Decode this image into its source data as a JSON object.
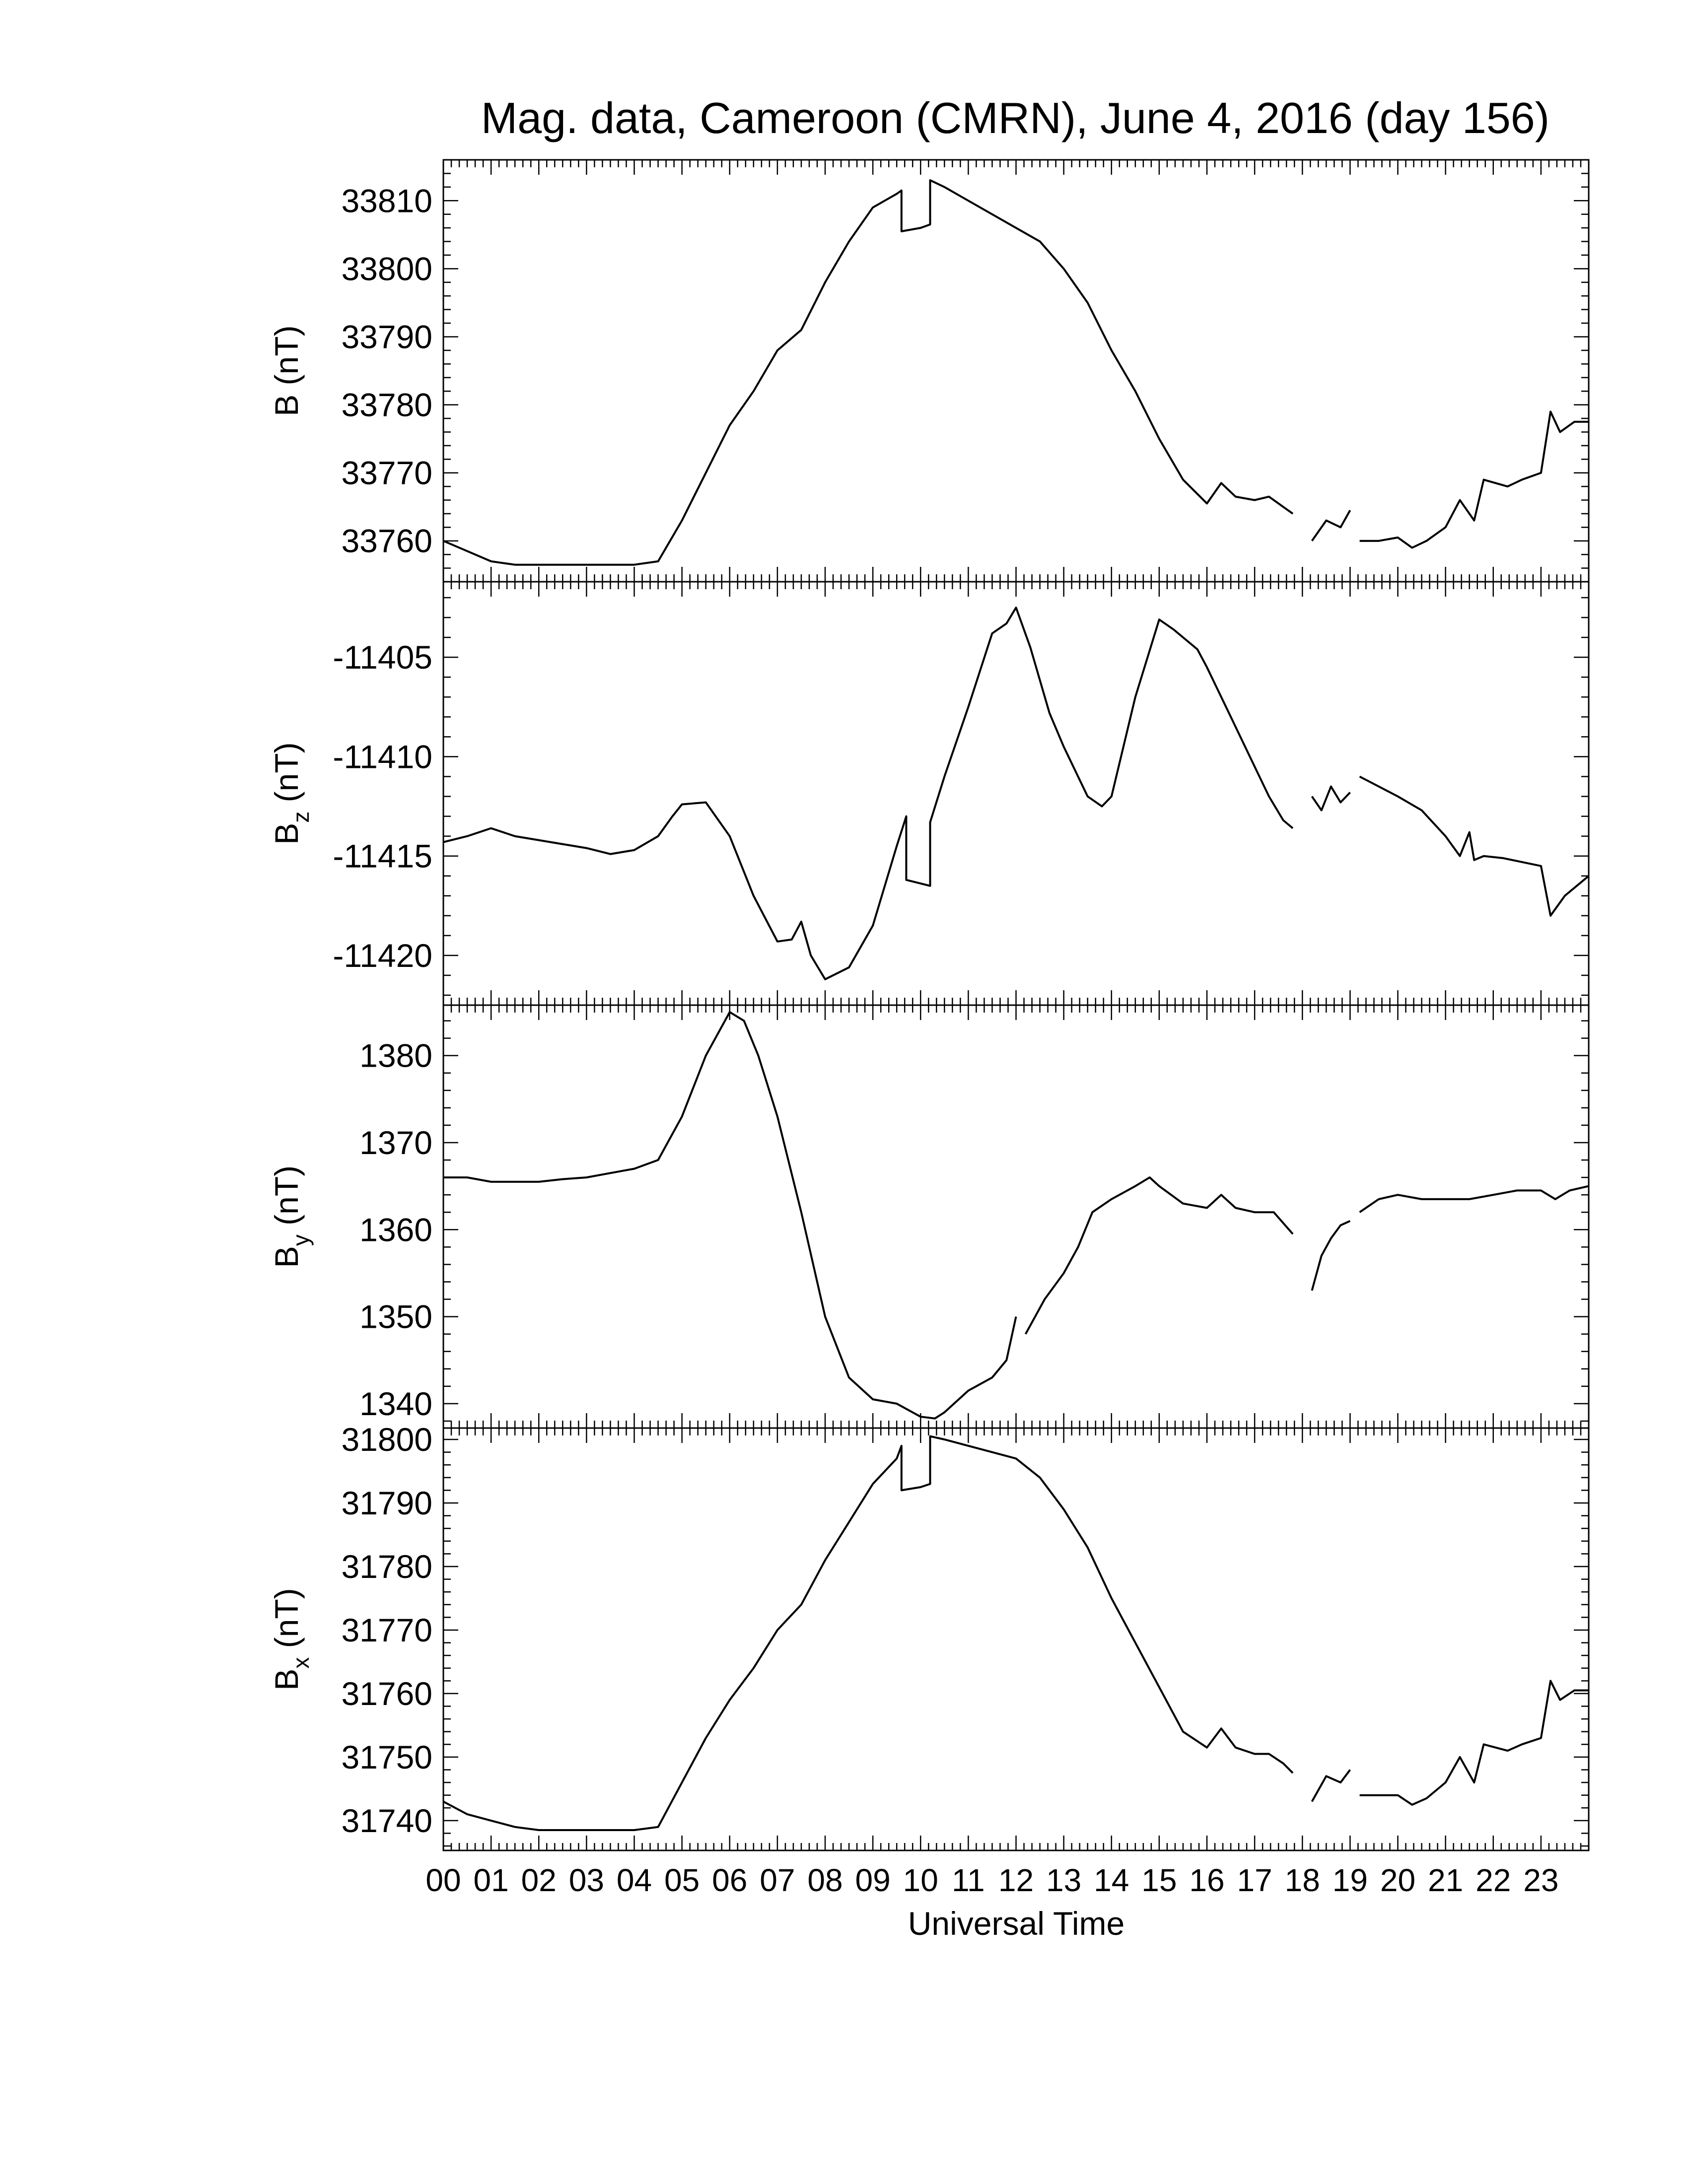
{
  "title": "Mag. data, Cameroon (CMRN), June 4, 2016 (day 156)",
  "xlabel": "Universal Time",
  "line_color": "#000000",
  "xticks": [
    "00",
    "01",
    "02",
    "03",
    "04",
    "05",
    "06",
    "07",
    "08",
    "09",
    "10",
    "11",
    "12",
    "13",
    "14",
    "15",
    "16",
    "17",
    "18",
    "19",
    "20",
    "21",
    "22",
    "23"
  ],
  "chart_data": [
    {
      "type": "line",
      "ylabel": "B (nT)",
      "ylabel_main": "B",
      "ylabel_sub": "",
      "ylim": [
        33754,
        33816
      ],
      "yticks": [
        33760,
        33770,
        33780,
        33790,
        33800,
        33810
      ],
      "xlim": [
        0,
        24
      ],
      "segments": [
        [
          [
            0,
            33760
          ],
          [
            0.5,
            33758.5
          ],
          [
            1,
            33757
          ],
          [
            1.5,
            33756.5
          ],
          [
            2,
            33756.5
          ],
          [
            2.5,
            33756.5
          ],
          [
            3,
            33756.5
          ],
          [
            3.5,
            33756.5
          ],
          [
            4,
            33756.5
          ],
          [
            4.5,
            33757
          ],
          [
            5,
            33763
          ],
          [
            5.5,
            33770
          ],
          [
            6,
            33777
          ],
          [
            6.5,
            33782
          ],
          [
            7,
            33788
          ],
          [
            7.5,
            33791
          ],
          [
            8,
            33798
          ],
          [
            8.5,
            33804
          ],
          [
            9,
            33809
          ],
          [
            9.5,
            33811
          ],
          [
            9.6,
            33811.5
          ],
          [
            9.6,
            33805.5
          ],
          [
            10,
            33806
          ],
          [
            10.2,
            33806.5
          ],
          [
            10.2,
            33813
          ],
          [
            10.5,
            33812
          ],
          [
            11,
            33810
          ],
          [
            11.5,
            33808
          ],
          [
            12,
            33806
          ],
          [
            12.5,
            33804
          ],
          [
            13,
            33800
          ],
          [
            13.5,
            33795
          ],
          [
            14,
            33788
          ],
          [
            14.5,
            33782
          ],
          [
            15,
            33775
          ],
          [
            15.5,
            33769
          ],
          [
            16,
            33765.5
          ],
          [
            16.3,
            33768.5
          ],
          [
            16.6,
            33766.5
          ],
          [
            17,
            33766
          ],
          [
            17.3,
            33766.5
          ],
          [
            17.6,
            33765
          ],
          [
            17.8,
            33764
          ]
        ],
        [
          [
            18.2,
            33760
          ],
          [
            18.5,
            33763
          ],
          [
            18.8,
            33762
          ],
          [
            19,
            33764.5
          ]
        ],
        [
          [
            19.2,
            33760
          ],
          [
            19.6,
            33760
          ],
          [
            20,
            33760.5
          ],
          [
            20.3,
            33759
          ],
          [
            20.6,
            33760
          ],
          [
            21,
            33762
          ],
          [
            21.3,
            33766
          ],
          [
            21.6,
            33763
          ],
          [
            21.8,
            33769
          ],
          [
            22.3,
            33768
          ],
          [
            22.6,
            33769
          ],
          [
            23,
            33770
          ],
          [
            23.2,
            33779
          ],
          [
            23.4,
            33776
          ],
          [
            23.7,
            33777.5
          ],
          [
            24,
            33777.5
          ]
        ]
      ]
    },
    {
      "type": "line",
      "ylabel": "Bz (nT)",
      "ylabel_main": "B",
      "ylabel_sub": "z",
      "ylim": [
        -11422.5,
        -11401.2
      ],
      "yticks": [
        -11420,
        -11415,
        -11410,
        -11405
      ],
      "xlim": [
        0,
        24
      ],
      "segments": [
        [
          [
            0,
            -11414.3
          ],
          [
            0.5,
            -11414
          ],
          [
            1,
            -11413.6
          ],
          [
            1.5,
            -11414
          ],
          [
            2,
            -11414.2
          ],
          [
            2.5,
            -11414.4
          ],
          [
            3,
            -11414.6
          ],
          [
            3.5,
            -11414.9
          ],
          [
            4,
            -11414.7
          ],
          [
            4.5,
            -11414
          ],
          [
            4.8,
            -11413
          ],
          [
            5,
            -11412.4
          ],
          [
            5.5,
            -11412.3
          ],
          [
            6,
            -11414
          ],
          [
            6.5,
            -11417
          ],
          [
            7,
            -11419.3
          ],
          [
            7.3,
            -11419.2
          ],
          [
            7.5,
            -11418.3
          ],
          [
            7.7,
            -11420
          ],
          [
            8,
            -11421.2
          ],
          [
            8.5,
            -11420.6
          ],
          [
            9,
            -11418.5
          ],
          [
            9.5,
            -11414.5
          ],
          [
            9.7,
            -11413
          ],
          [
            9.7,
            -11416.2
          ],
          [
            10.2,
            -11416.5
          ],
          [
            10.2,
            -11413.3
          ],
          [
            10.5,
            -11411
          ],
          [
            11,
            -11407.5
          ],
          [
            11.5,
            -11403.8
          ],
          [
            11.8,
            -11403.3
          ],
          [
            12,
            -11402.5
          ],
          [
            12.3,
            -11404.5
          ],
          [
            12.7,
            -11407.8
          ],
          [
            13,
            -11409.5
          ],
          [
            13.5,
            -11412
          ],
          [
            13.8,
            -11412.5
          ],
          [
            14,
            -11412
          ],
          [
            14.5,
            -11407
          ],
          [
            15,
            -11403.1
          ],
          [
            15.3,
            -11403.6
          ],
          [
            15.8,
            -11404.6
          ],
          [
            16,
            -11405.5
          ],
          [
            16.5,
            -11408
          ],
          [
            17,
            -11410.5
          ],
          [
            17.3,
            -11412
          ],
          [
            17.6,
            -11413.2
          ],
          [
            17.8,
            -11413.6
          ]
        ],
        [
          [
            18.2,
            -11412
          ],
          [
            18.4,
            -11412.7
          ],
          [
            18.6,
            -11411.5
          ],
          [
            18.8,
            -11412.3
          ],
          [
            19,
            -11411.8
          ]
        ],
        [
          [
            19.2,
            -11411
          ],
          [
            19.6,
            -11411.5
          ],
          [
            20,
            -11412
          ],
          [
            20.5,
            -11412.7
          ],
          [
            21,
            -11414
          ],
          [
            21.3,
            -11415
          ],
          [
            21.5,
            -11413.8
          ],
          [
            21.6,
            -11415.2
          ],
          [
            21.8,
            -11415
          ],
          [
            22.2,
            -11415.1
          ],
          [
            22.6,
            -11415.3
          ],
          [
            23,
            -11415.5
          ],
          [
            23.2,
            -11418
          ],
          [
            23.5,
            -11417
          ],
          [
            24,
            -11416
          ]
        ]
      ]
    },
    {
      "type": "line",
      "ylabel": "By (nT)",
      "ylabel_main": "B",
      "ylabel_sub": "y",
      "ylim": [
        1337.2,
        1385.8
      ],
      "yticks": [
        1340,
        1350,
        1360,
        1370,
        1380
      ],
      "xlim": [
        0,
        24
      ],
      "segments": [
        [
          [
            0,
            1366
          ],
          [
            0.5,
            1366
          ],
          [
            1,
            1365.5
          ],
          [
            1.5,
            1365.5
          ],
          [
            2,
            1365.5
          ],
          [
            2.5,
            1365.8
          ],
          [
            3,
            1366
          ],
          [
            3.5,
            1366.5
          ],
          [
            4,
            1367
          ],
          [
            4.5,
            1368
          ],
          [
            5,
            1373
          ],
          [
            5.5,
            1380
          ],
          [
            6,
            1385
          ],
          [
            6.3,
            1384
          ],
          [
            6.6,
            1380
          ],
          [
            7,
            1373
          ],
          [
            7.5,
            1362
          ],
          [
            8,
            1350
          ],
          [
            8.5,
            1343
          ],
          [
            9,
            1340.5
          ],
          [
            9.5,
            1340
          ],
          [
            10,
            1338.5
          ],
          [
            10.3,
            1338.3
          ],
          [
            10.5,
            1339
          ],
          [
            11,
            1341.5
          ],
          [
            11.5,
            1343
          ],
          [
            11.8,
            1345
          ],
          [
            12,
            1350
          ]
        ],
        [
          [
            12.2,
            1348
          ],
          [
            12.6,
            1352
          ],
          [
            13,
            1355
          ],
          [
            13.3,
            1358
          ],
          [
            13.6,
            1362
          ],
          [
            14,
            1363.5
          ],
          [
            14.5,
            1365
          ],
          [
            14.8,
            1366
          ],
          [
            15,
            1365
          ],
          [
            15.5,
            1363
          ],
          [
            16,
            1362.5
          ],
          [
            16.3,
            1364
          ],
          [
            16.6,
            1362.5
          ],
          [
            17,
            1362
          ],
          [
            17.4,
            1362
          ],
          [
            17.8,
            1359.5
          ]
        ],
        [
          [
            18.2,
            1353
          ],
          [
            18.4,
            1357
          ],
          [
            18.6,
            1359
          ],
          [
            18.8,
            1360.5
          ],
          [
            19,
            1361
          ]
        ],
        [
          [
            19.2,
            1362
          ],
          [
            19.6,
            1363.5
          ],
          [
            20,
            1364
          ],
          [
            20.5,
            1363.5
          ],
          [
            21,
            1363.5
          ],
          [
            21.5,
            1363.5
          ],
          [
            22,
            1364
          ],
          [
            22.5,
            1364.5
          ],
          [
            23,
            1364.5
          ],
          [
            23.3,
            1363.5
          ],
          [
            23.6,
            1364.5
          ],
          [
            24,
            1365
          ]
        ]
      ]
    },
    {
      "type": "line",
      "ylabel": "Bx (nT)",
      "ylabel_main": "B",
      "ylabel_sub": "x",
      "ylim": [
        31735.3,
        31801.8
      ],
      "yticks": [
        31740,
        31750,
        31760,
        31770,
        31780,
        31790,
        31800
      ],
      "xlim": [
        0,
        24
      ],
      "segments": [
        [
          [
            0,
            31743
          ],
          [
            0.5,
            31741
          ],
          [
            1,
            31740
          ],
          [
            1.5,
            31739
          ],
          [
            2,
            31738.5
          ],
          [
            2.5,
            31738.5
          ],
          [
            3,
            31738.5
          ],
          [
            3.5,
            31738.5
          ],
          [
            4,
            31738.5
          ],
          [
            4.5,
            31739
          ],
          [
            5,
            31746
          ],
          [
            5.5,
            31753
          ],
          [
            6,
            31759
          ],
          [
            6.5,
            31764
          ],
          [
            7,
            31770
          ],
          [
            7.5,
            31774
          ],
          [
            8,
            31781
          ],
          [
            8.5,
            31787
          ],
          [
            9,
            31793
          ],
          [
            9.5,
            31797
          ],
          [
            9.6,
            31799
          ],
          [
            9.6,
            31792
          ],
          [
            10,
            31792.5
          ],
          [
            10.2,
            31793
          ],
          [
            10.2,
            31800.5
          ],
          [
            10.5,
            31800
          ],
          [
            11,
            31799
          ],
          [
            11.5,
            31798
          ],
          [
            12,
            31797
          ],
          [
            12.5,
            31794
          ],
          [
            13,
            31789
          ],
          [
            13.5,
            31783
          ],
          [
            14,
            31775
          ],
          [
            14.5,
            31768
          ],
          [
            15,
            31761
          ],
          [
            15.5,
            31754
          ],
          [
            16,
            31751.5
          ],
          [
            16.3,
            31754.5
          ],
          [
            16.6,
            31751.5
          ],
          [
            17,
            31750.5
          ],
          [
            17.3,
            31750.5
          ],
          [
            17.6,
            31749
          ],
          [
            17.8,
            31747.5
          ]
        ],
        [
          [
            18.2,
            31743
          ],
          [
            18.5,
            31747
          ],
          [
            18.8,
            31746
          ],
          [
            19,
            31748
          ]
        ],
        [
          [
            19.2,
            31744
          ],
          [
            19.6,
            31744
          ],
          [
            20,
            31744
          ],
          [
            20.3,
            31742.5
          ],
          [
            20.6,
            31743.5
          ],
          [
            21,
            31746
          ],
          [
            21.3,
            31750
          ],
          [
            21.6,
            31746
          ],
          [
            21.8,
            31752
          ],
          [
            22.3,
            31751
          ],
          [
            22.6,
            31752
          ],
          [
            23,
            31753
          ],
          [
            23.2,
            31762
          ],
          [
            23.4,
            31759
          ],
          [
            23.7,
            31760.5
          ],
          [
            24,
            31760.5
          ]
        ]
      ]
    }
  ]
}
